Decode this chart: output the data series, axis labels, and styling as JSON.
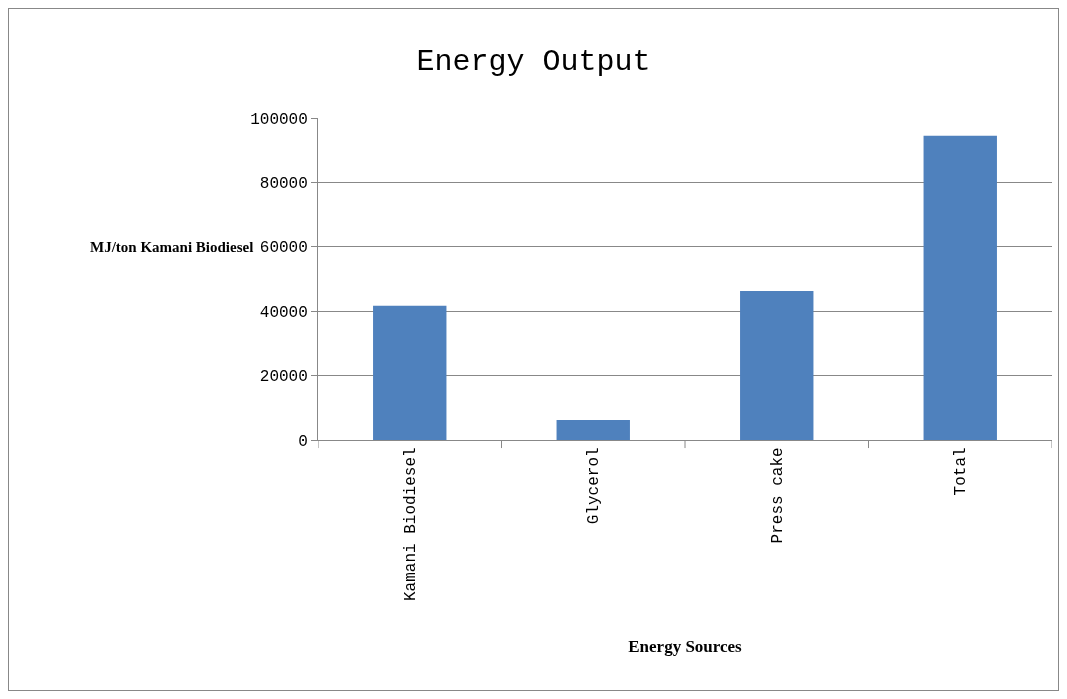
{
  "chart_data": {
    "type": "bar",
    "title": "Energy Output",
    "xlabel": "Energy Sources",
    "ylabel": "MJ/ton Kamani Biodiesel",
    "categories": [
      "Kamani Biodiesel",
      "Glycerol",
      "Press cake",
      "Total"
    ],
    "values": [
      41700,
      6200,
      46300,
      94500
    ],
    "color": "#4f81bd",
    "ylim": [
      0,
      100000
    ],
    "yticks": [
      0,
      20000,
      40000,
      60000,
      80000,
      100000
    ],
    "grid": "y"
  }
}
